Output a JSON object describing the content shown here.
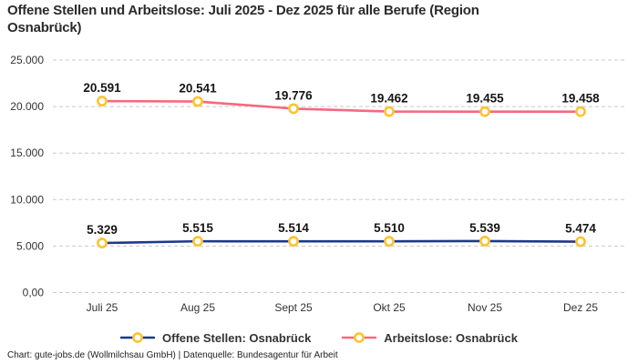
{
  "title": "Offene Stellen und Arbeitslose: Juli 2025 - Dez 2025 für alle Berufe (Region Osnabrück)",
  "footer": "Chart: gute-jobs.de (Wollmilchsau GmbH) | Datenquelle: Bundesagentur für Arbeit",
  "chart_data": {
    "type": "line",
    "title": "Offene Stellen und Arbeitslose: Juli 2025 - Dez 2025 für alle Berufe (Region Osnabrück)",
    "categories": [
      "Juli 25",
      "Aug 25",
      "Sept 25",
      "Okt 25",
      "Nov 25",
      "Dez 25"
    ],
    "series": [
      {
        "id": "offene-stellen",
        "name": "Offene Stellen: Osnabrück",
        "color": "#1f378d",
        "values": [
          5329,
          5515,
          5514,
          5510,
          5539,
          5474
        ],
        "labels": [
          "5.329",
          "5.515",
          "5.514",
          "5.510",
          "5.539",
          "5.474"
        ]
      },
      {
        "id": "arbeitslose",
        "name": "Arbeitslose: Osnabrück",
        "color": "#f5697f",
        "values": [
          20591,
          20541,
          19776,
          19462,
          19455,
          19458
        ],
        "labels": [
          "20.591",
          "20.541",
          "19.776",
          "19.462",
          "19.455",
          "19.458"
        ]
      }
    ],
    "y_ticks": [
      {
        "value": 0,
        "label": "0,00"
      },
      {
        "value": 5000,
        "label": "5.000"
      },
      {
        "value": 10000,
        "label": "10.000"
      },
      {
        "value": 15000,
        "label": "15.000"
      },
      {
        "value": 20000,
        "label": "20.000"
      },
      {
        "value": 25000,
        "label": "25.000"
      }
    ],
    "ylim": [
      0,
      25000
    ],
    "grid": "horizontal-dashed",
    "gridline_color": "#c9c9c9",
    "axis_text_color": "#333333",
    "point_label_color": "#151515",
    "legend_position": "bottom",
    "marker": {
      "fill": "#ffffff",
      "stroke": "#fdc32f"
    }
  }
}
